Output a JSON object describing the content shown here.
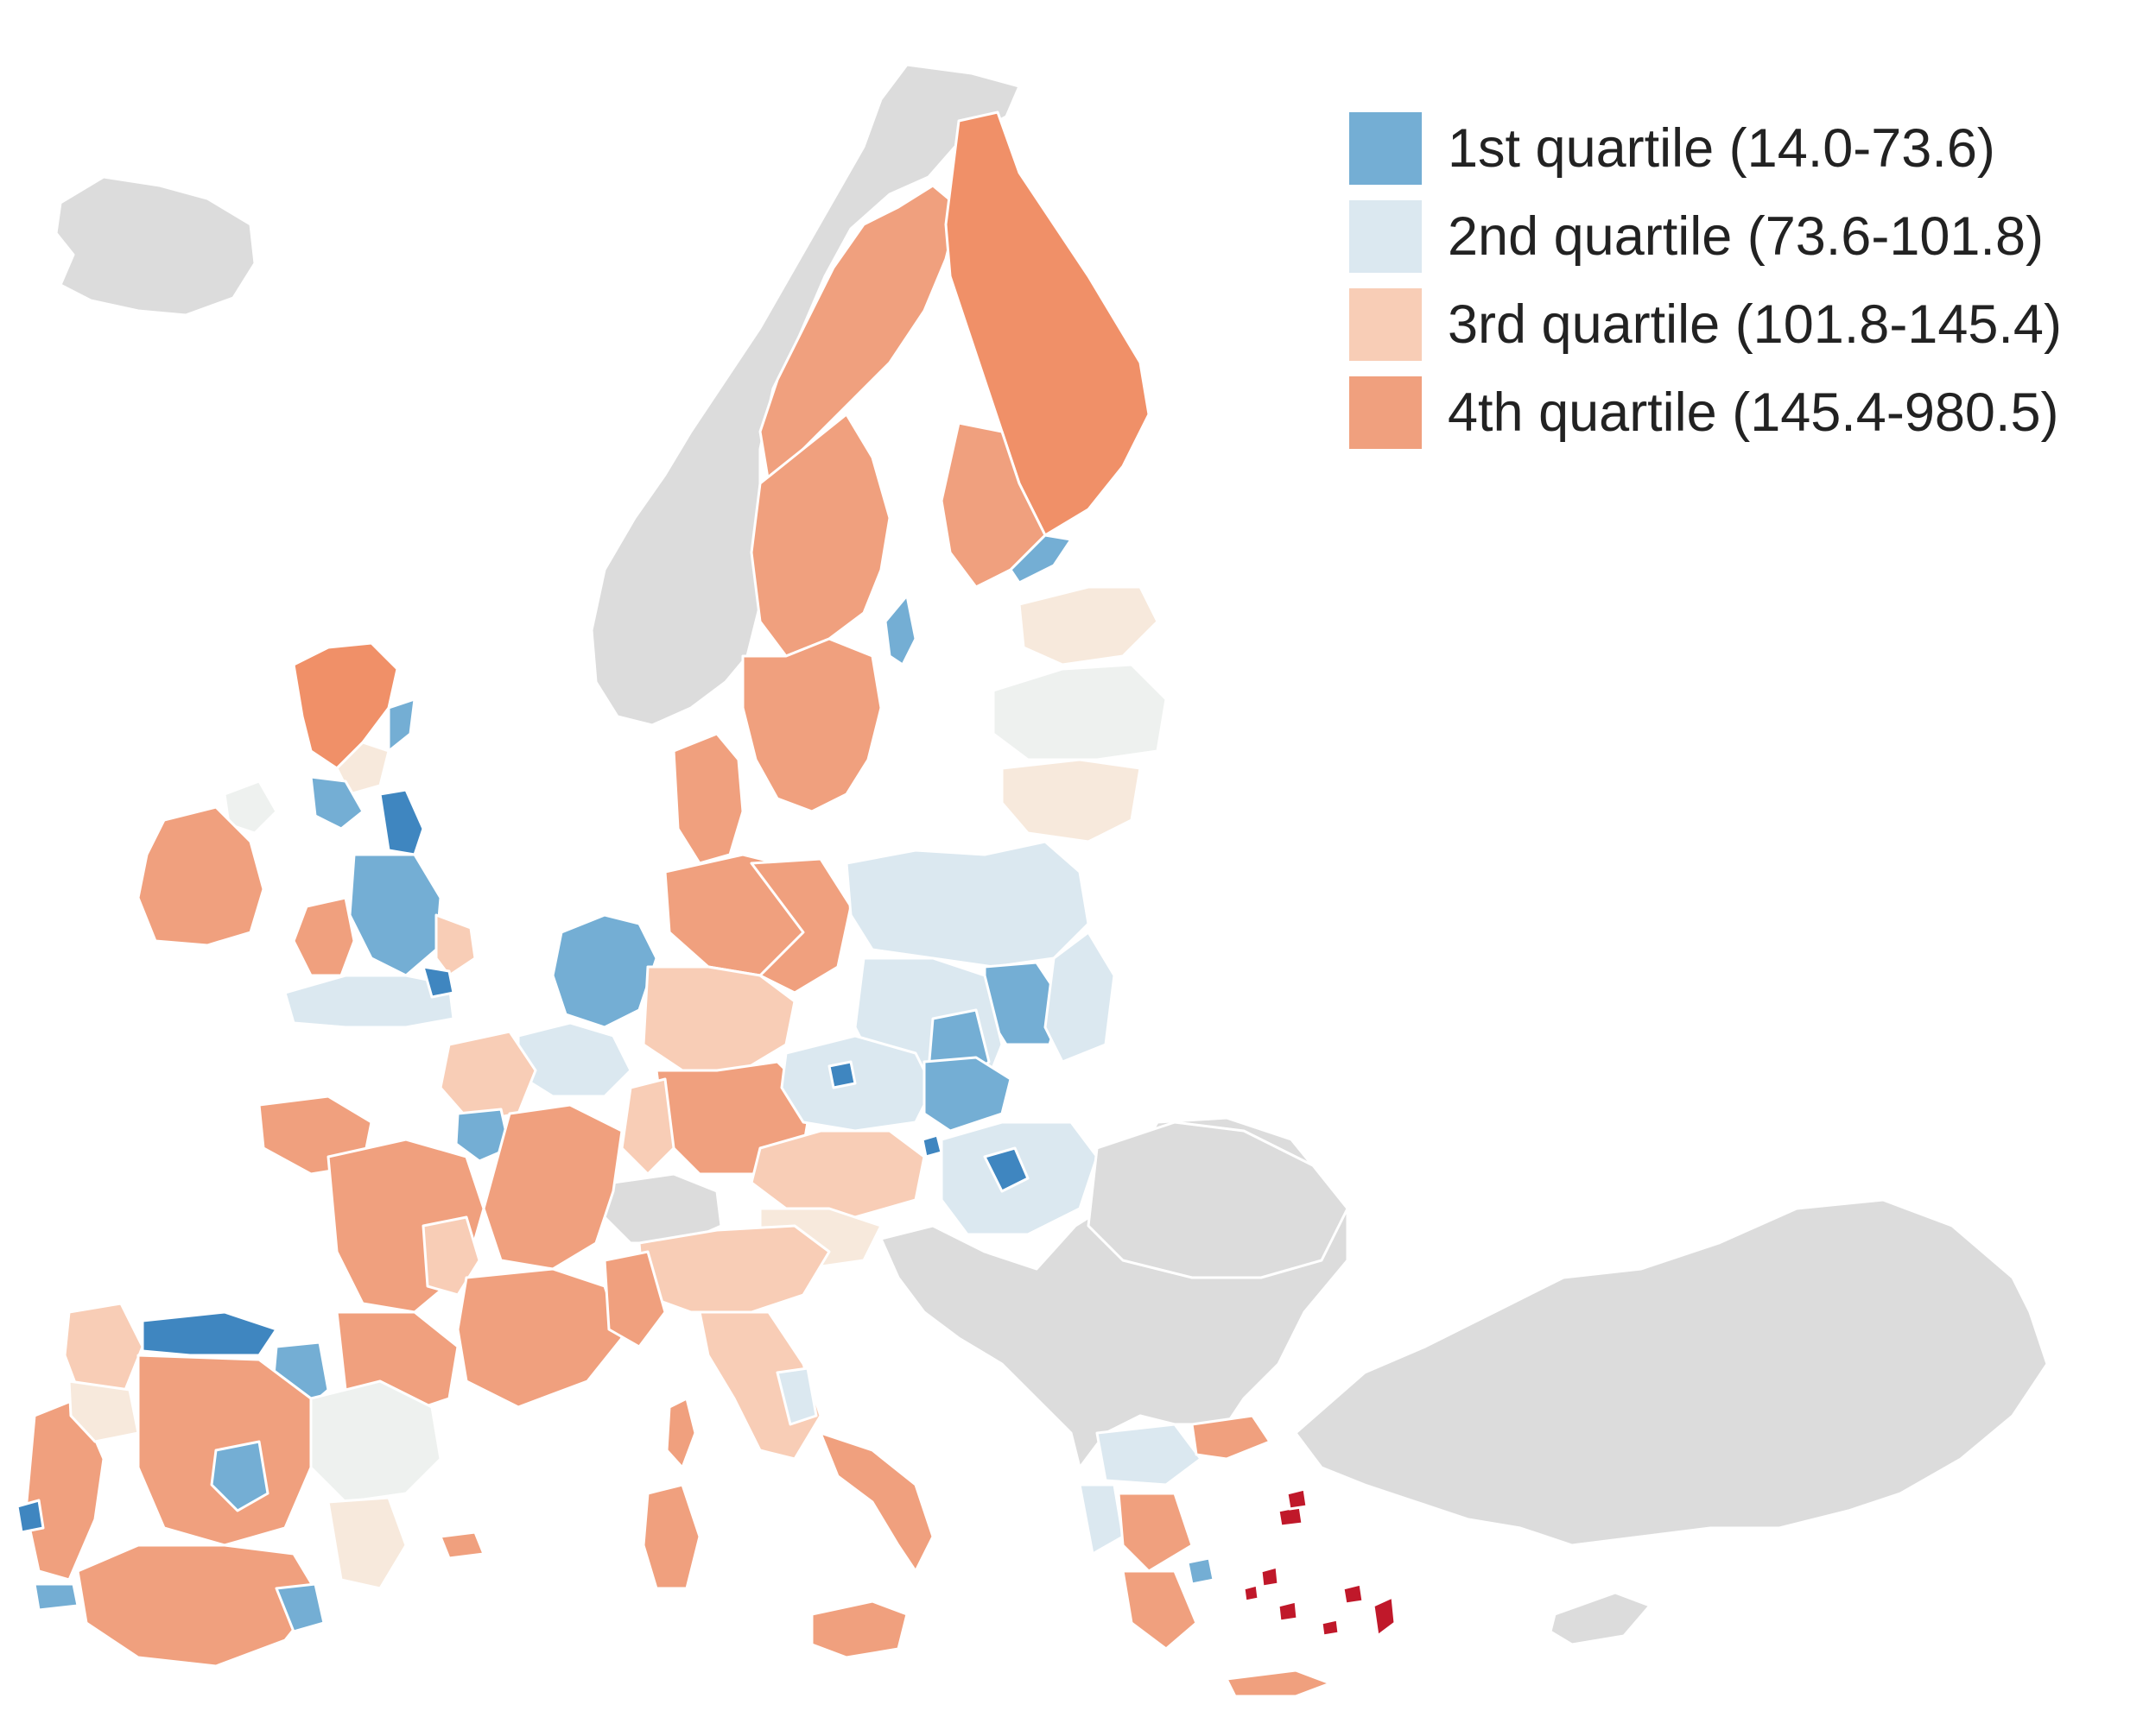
{
  "colors": {
    "q1": "#74aed4",
    "q1_dark": "#3f86c0",
    "q2": "#dbe8f0",
    "q3": "#f8cdb6",
    "q4": "#f0a07e",
    "q4_dark": "#f09068",
    "q_light3": "#f7e9dc",
    "q_light2": "#eef1ef",
    "extreme": "#c0182a",
    "nodata": "#dcdcdc",
    "border": "#ffffff"
  },
  "legend": {
    "items": [
      {
        "label": "1st quartile (14.0-73.6)",
        "color": "#74aed4"
      },
      {
        "label": "2nd quartile (73.6-101.8)",
        "color": "#dbe8f0"
      },
      {
        "label": "3rd quartile (101.8-145.4)",
        "color": "#f8cdb6"
      },
      {
        "label": "4th quartile (145.4-980.5)",
        "color": "#f0a07e"
      }
    ]
  }
}
